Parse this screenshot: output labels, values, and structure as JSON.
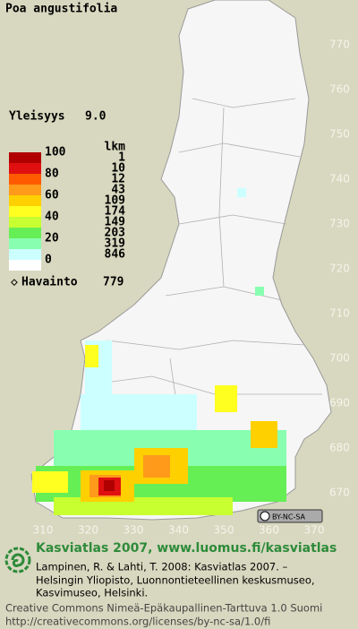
{
  "title": "Poa angustifolia",
  "frequency": {
    "label": "Yleisyys",
    "value": "9.0"
  },
  "legend": {
    "scale": [
      100,
      80,
      60,
      40,
      20,
      0
    ],
    "count_header": "lkm",
    "counts": [
      1,
      10,
      12,
      43,
      109,
      174,
      149,
      203,
      319,
      846
    ],
    "colors": [
      "#b00000",
      "#e01010",
      "#ff5a00",
      "#ff9a1a",
      "#ffd000",
      "#ffff20",
      "#c8ff30",
      "#66ee55",
      "#88ffb0",
      "#ccffff"
    ],
    "zero_color": "#ffffff"
  },
  "observations": {
    "label": "Havainto",
    "value": 779
  },
  "y_axis": [
    770,
    760,
    750,
    740,
    730,
    720,
    710,
    700,
    690,
    680,
    670
  ],
  "x_axis": [
    310,
    320,
    330,
    340,
    350,
    360,
    370
  ],
  "license_badge": "BY-NC-SA",
  "footer": {
    "headline": "Kasviatlas 2007, www.luomus.fi/kasviatlas",
    "citation": [
      "Lampinen, R. & Lahti, T. 2008: Kasviatlas 2007. –",
      "Helsingin Yliopisto, Luonnontieteellinen keskusmuseo,",
      "Kasvimuseo, Helsinki."
    ],
    "license": [
      "Creative Commons Nimeä-Epäkaupallinen-Tarttuva 1.0 Suomi",
      "http://creativecommons.org/licenses/by-nc-sa/1.0/fi"
    ]
  }
}
